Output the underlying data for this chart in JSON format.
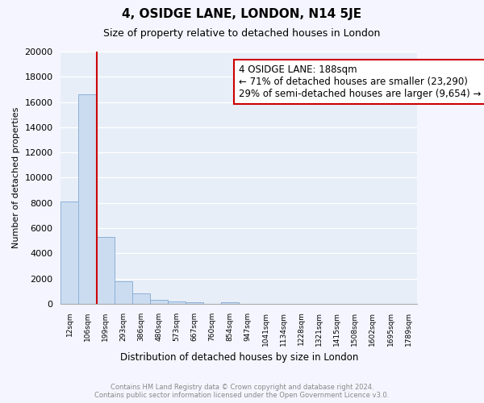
{
  "title": "4, OSIDGE LANE, LONDON, N14 5JE",
  "subtitle": "Size of property relative to detached houses in London",
  "xlabel": "Distribution of detached houses by size in London",
  "ylabel": "Number of detached properties",
  "bar_values": [
    8100,
    16600,
    5300,
    1750,
    800,
    300,
    200,
    100,
    0,
    100,
    0,
    0,
    0,
    0,
    0,
    0,
    0,
    0,
    0,
    0
  ],
  "bar_labels": [
    "12sqm",
    "106sqm",
    "199sqm",
    "293sqm",
    "386sqm",
    "480sqm",
    "573sqm",
    "667sqm",
    "760sqm",
    "854sqm",
    "947sqm",
    "1041sqm",
    "1134sqm",
    "1228sqm",
    "1321sqm",
    "1415sqm",
    "1508sqm",
    "1602sqm",
    "1695sqm",
    "1789sqm"
  ],
  "bar_color": "#ccdcf0",
  "bar_edge_color": "#8ab0d8",
  "vline_x": 1.5,
  "vline_color": "#cc0000",
  "ylim": [
    0,
    20000
  ],
  "yticks": [
    0,
    2000,
    4000,
    6000,
    8000,
    10000,
    12000,
    14000,
    16000,
    18000,
    20000
  ],
  "annotation_title": "4 OSIDGE LANE: 188sqm",
  "annotation_line1": "← 71% of detached houses are smaller (23,290)",
  "annotation_line2": "29% of semi-detached houses are larger (9,654) →",
  "annotation_box_color": "#ffffff",
  "annotation_box_edge": "#cc0000",
  "footer_line1": "Contains HM Land Registry data © Crown copyright and database right 2024.",
  "footer_line2": "Contains public sector information licensed under the Open Government Licence v3.0.",
  "plot_bg_color": "#e8eef8",
  "fig_bg_color": "#f5f5ff"
}
